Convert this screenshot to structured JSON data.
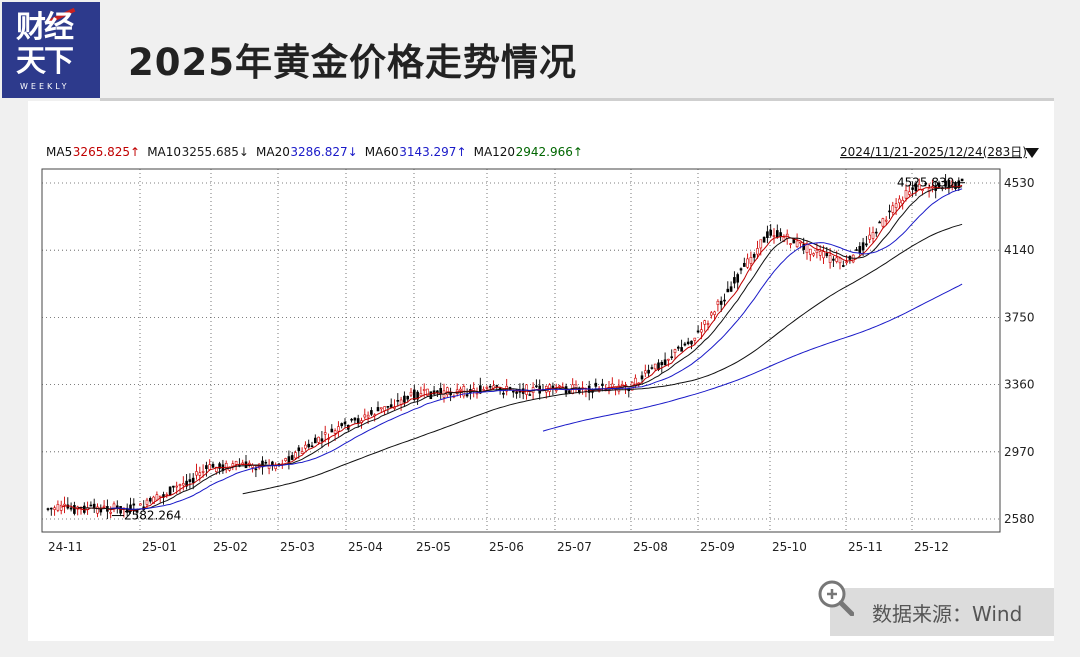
{
  "header": {
    "logo_line1": "财经",
    "logo_line2": "天下",
    "logo_sub": "WEEKLY",
    "title": "2025年黄金价格走势情况"
  },
  "source": {
    "label": "数据来源：Wind"
  },
  "chart_data": {
    "type": "line",
    "range_label": "2024/11/21-2025/12/24(283日)",
    "legend": [
      {
        "label": "MA5",
        "value": "3265.825",
        "arrow": "↑",
        "color": "#c00000"
      },
      {
        "label": "MA10",
        "value": "3255.685",
        "arrow": "↓",
        "color": "#222222"
      },
      {
        "label": "MA20",
        "value": "3286.827",
        "arrow": "↓",
        "color": "#1a1ac8"
      },
      {
        "label": "MA60",
        "value": "3143.297",
        "arrow": "↑",
        "color": "#1a1ac8"
      },
      {
        "label": "MA120",
        "value": "2942.966",
        "arrow": "↑",
        "color": "#006600"
      }
    ],
    "ylim": [
      2580,
      4530
    ],
    "y_ticks": [
      "4530",
      "4140",
      "3750",
      "3360",
      "2970",
      "2580"
    ],
    "x_ticks": [
      "24-11",
      "25-01",
      "25-02",
      "25-03",
      "25-04",
      "25-05",
      "25-06",
      "25-07",
      "25-08",
      "25-09",
      "25-10",
      "25-11",
      "25-12"
    ],
    "annotations": {
      "high": "4525.830",
      "low": "2582.264"
    },
    "price_key_points": [
      {
        "month": "24-11",
        "value": 2640
      },
      {
        "month": "25-01",
        "value": 2640
      },
      {
        "month": "25-02",
        "value": 2880
      },
      {
        "month": "25-03",
        "value": 2900
      },
      {
        "month": "25-04",
        "value": 3120
      },
      {
        "month": "25-05",
        "value": 3300
      },
      {
        "month": "25-06",
        "value": 3330
      },
      {
        "month": "25-07",
        "value": 3330
      },
      {
        "month": "25-08",
        "value": 3350
      },
      {
        "month": "25-09",
        "value": 3650
      },
      {
        "month": "25-10",
        "value": 4250
      },
      {
        "month": "25-11",
        "value": 4050
      },
      {
        "month": "25-12",
        "value": 4500
      }
    ],
    "grid": true
  }
}
